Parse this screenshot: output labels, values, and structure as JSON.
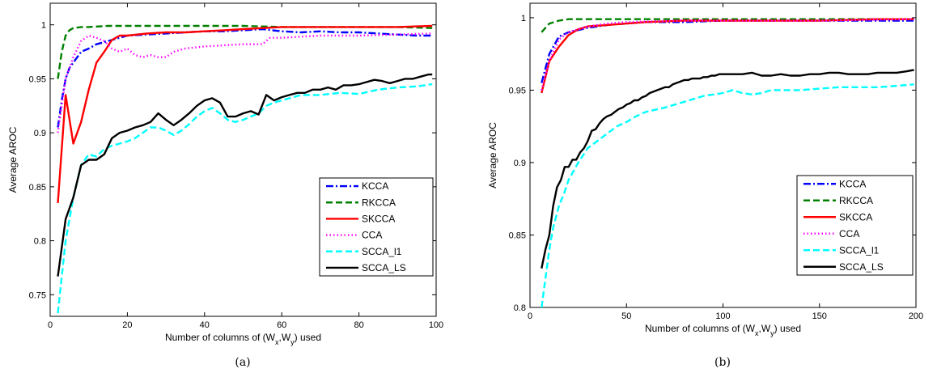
{
  "chart_data": [
    {
      "type": "line",
      "caption": "(a)",
      "xlabel": "Number of columns of (W",
      "xlabel_sub1": "x",
      "xlabel_mid": ",W",
      "xlabel_sub2": "y",
      "xlabel_end": ") used",
      "ylabel": "Average AROC",
      "xlim": [
        0,
        100
      ],
      "ylim": [
        0.73,
        1.02
      ],
      "xticks": [
        0,
        20,
        40,
        60,
        80,
        100
      ],
      "yticks": [
        0.75,
        0.8,
        0.85,
        0.9,
        0.95,
        1
      ],
      "ytick_labels": [
        "0.75",
        "0.8",
        "0.85",
        "0.9",
        "0.95",
        "1"
      ],
      "legend_position": "lower-right",
      "series": [
        {
          "name": "KCCA",
          "color": "#0000ff",
          "style": "dashdot",
          "x": [
            2,
            3,
            4,
            5,
            6,
            8,
            10,
            12,
            15,
            18,
            20,
            25,
            30,
            35,
            40,
            45,
            50,
            55,
            60,
            65,
            70,
            75,
            80,
            85,
            90,
            95,
            99
          ],
          "y": [
            0.905,
            0.93,
            0.95,
            0.96,
            0.965,
            0.975,
            0.978,
            0.982,
            0.985,
            0.988,
            0.99,
            0.991,
            0.992,
            0.993,
            0.994,
            0.994,
            0.995,
            0.996,
            0.994,
            0.993,
            0.994,
            0.993,
            0.993,
            0.992,
            0.991,
            0.99,
            0.99
          ]
        },
        {
          "name": "RKCCA",
          "color": "#008000",
          "style": "dashed",
          "x": [
            2,
            3,
            4,
            5,
            6,
            8,
            10,
            15,
            20,
            30,
            40,
            50,
            60,
            70,
            80,
            90,
            99
          ],
          "y": [
            0.95,
            0.975,
            0.99,
            0.995,
            0.997,
            0.998,
            0.998,
            0.999,
            0.999,
            0.999,
            0.999,
            0.999,
            0.998,
            0.998,
            0.998,
            0.998,
            0.997
          ]
        },
        {
          "name": "SKCCA",
          "color": "#ff0000",
          "style": "solid",
          "x": [
            2,
            4,
            6,
            8,
            10,
            12,
            14,
            16,
            18,
            20,
            25,
            30,
            35,
            40,
            45,
            50,
            55,
            60,
            70,
            80,
            90,
            99
          ],
          "y": [
            0.835,
            0.935,
            0.89,
            0.91,
            0.94,
            0.965,
            0.975,
            0.986,
            0.99,
            0.99,
            0.992,
            0.993,
            0.993,
            0.994,
            0.995,
            0.996,
            0.997,
            0.998,
            0.998,
            0.998,
            0.998,
            0.999
          ]
        },
        {
          "name": "CCA",
          "color": "#ff00ff",
          "style": "dotted",
          "x": [
            2,
            4,
            6,
            8,
            10,
            12,
            14,
            16,
            18,
            20,
            22,
            24,
            26,
            28,
            30,
            32,
            35,
            40,
            45,
            50,
            55,
            57,
            60,
            70,
            80,
            90,
            99
          ],
          "y": [
            0.9,
            0.95,
            0.97,
            0.985,
            0.99,
            0.988,
            0.985,
            0.978,
            0.975,
            0.978,
            0.972,
            0.97,
            0.972,
            0.97,
            0.97,
            0.975,
            0.978,
            0.98,
            0.981,
            0.982,
            0.982,
            0.988,
            0.988,
            0.99,
            0.99,
            0.991,
            0.992
          ]
        },
        {
          "name": "SCCA_l1",
          "color": "#00ffff",
          "style": "dashed",
          "x": [
            2,
            4,
            6,
            8,
            10,
            12,
            14,
            16,
            18,
            20,
            22,
            24,
            26,
            28,
            30,
            32,
            34,
            36,
            38,
            40,
            42,
            44,
            46,
            48,
            50,
            52,
            54,
            56,
            58,
            60,
            65,
            70,
            75,
            80,
            85,
            90,
            95,
            99
          ],
          "y": [
            0.733,
            0.8,
            0.84,
            0.87,
            0.88,
            0.878,
            0.885,
            0.888,
            0.89,
            0.892,
            0.895,
            0.9,
            0.905,
            0.905,
            0.902,
            0.898,
            0.902,
            0.908,
            0.915,
            0.92,
            0.923,
            0.918,
            0.912,
            0.91,
            0.912,
            0.915,
            0.918,
            0.925,
            0.928,
            0.93,
            0.935,
            0.935,
            0.937,
            0.936,
            0.94,
            0.942,
            0.943,
            0.945
          ]
        },
        {
          "name": "SCCA_LS",
          "color": "#000000",
          "style": "solid",
          "x": [
            2,
            4,
            6,
            8,
            10,
            12,
            14,
            16,
            18,
            20,
            22,
            24,
            26,
            28,
            30,
            32,
            34,
            36,
            38,
            40,
            42,
            44,
            46,
            48,
            50,
            52,
            54,
            56,
            58,
            60,
            62,
            64,
            66,
            68,
            70,
            72,
            74,
            76,
            78,
            80,
            82,
            84,
            86,
            88,
            90,
            92,
            94,
            96,
            98,
            99
          ],
          "y": [
            0.767,
            0.82,
            0.84,
            0.87,
            0.875,
            0.875,
            0.88,
            0.895,
            0.9,
            0.902,
            0.905,
            0.907,
            0.91,
            0.918,
            0.912,
            0.907,
            0.912,
            0.918,
            0.925,
            0.93,
            0.932,
            0.928,
            0.915,
            0.915,
            0.918,
            0.92,
            0.917,
            0.935,
            0.93,
            0.933,
            0.935,
            0.937,
            0.937,
            0.94,
            0.94,
            0.942,
            0.94,
            0.944,
            0.944,
            0.945,
            0.947,
            0.949,
            0.948,
            0.946,
            0.948,
            0.95,
            0.95,
            0.952,
            0.954,
            0.954
          ]
        }
      ]
    },
    {
      "type": "line",
      "caption": "(b)",
      "xlabel": "Number of columns of (W",
      "xlabel_sub1": "x",
      "xlabel_mid": ",W",
      "xlabel_sub2": "y",
      "xlabel_end": ") used",
      "ylabel": "Average AROC",
      "xlim": [
        0,
        200
      ],
      "ylim": [
        0.8,
        1.01
      ],
      "xticks": [
        0,
        50,
        100,
        150,
        200
      ],
      "yticks": [
        0.8,
        0.85,
        0.9,
        0.95,
        1
      ],
      "ytick_labels": [
        "0.8",
        "0.85",
        "0.9",
        "0.95",
        "1"
      ],
      "legend_position": "lower-right",
      "series": [
        {
          "name": "KCCA",
          "color": "#0000ff",
          "style": "dashdot",
          "x": [
            6,
            10,
            15,
            20,
            30,
            40,
            50,
            60,
            80,
            100,
            120,
            150,
            180,
            199
          ],
          "y": [
            0.955,
            0.975,
            0.987,
            0.99,
            0.993,
            0.995,
            0.996,
            0.997,
            0.997,
            0.998,
            0.998,
            0.998,
            0.998,
            0.998
          ]
        },
        {
          "name": "RKCCA",
          "color": "#008000",
          "style": "dashed",
          "x": [
            6,
            10,
            15,
            20,
            30,
            50,
            75,
            100,
            150,
            199
          ],
          "y": [
            0.99,
            0.996,
            0.998,
            0.999,
            0.999,
            0.999,
            0.999,
            0.999,
            0.999,
            0.999
          ]
        },
        {
          "name": "SKCCA",
          "color": "#ff0000",
          "style": "solid",
          "x": [
            6,
            10,
            15,
            20,
            25,
            30,
            40,
            50,
            60,
            80,
            100,
            120,
            150,
            180,
            199
          ],
          "y": [
            0.948,
            0.97,
            0.98,
            0.988,
            0.992,
            0.994,
            0.995,
            0.996,
            0.997,
            0.998,
            0.998,
            0.998,
            0.998,
            0.999,
            0.999
          ]
        },
        {
          "name": "CCA",
          "color": "#ff00ff",
          "style": "dotted",
          "x": [
            6,
            10,
            15,
            20,
            30,
            40,
            50,
            75,
            100,
            150,
            199
          ],
          "y": [
            0.95,
            0.97,
            0.985,
            0.99,
            0.994,
            0.996,
            0.997,
            0.998,
            0.998,
            0.998,
            0.999
          ]
        },
        {
          "name": "SCCA_l1",
          "color": "#00ffff",
          "style": "dashed",
          "x": [
            6,
            8,
            10,
            12,
            15,
            18,
            20,
            25,
            30,
            35,
            40,
            45,
            50,
            55,
            60,
            70,
            80,
            90,
            100,
            105,
            110,
            115,
            120,
            125,
            130,
            140,
            150,
            160,
            170,
            180,
            190,
            199
          ],
          "y": [
            0.8,
            0.82,
            0.84,
            0.855,
            0.87,
            0.88,
            0.888,
            0.9,
            0.91,
            0.915,
            0.92,
            0.925,
            0.928,
            0.932,
            0.935,
            0.938,
            0.942,
            0.946,
            0.948,
            0.95,
            0.948,
            0.947,
            0.948,
            0.95,
            0.95,
            0.95,
            0.951,
            0.952,
            0.952,
            0.952,
            0.953,
            0.954
          ]
        },
        {
          "name": "SCCA_LS",
          "color": "#000000",
          "style": "solid",
          "x": [
            6,
            8,
            10,
            12,
            14,
            16,
            18,
            20,
            22,
            24,
            26,
            28,
            30,
            32,
            34,
            36,
            38,
            40,
            42,
            44,
            46,
            48,
            50,
            52,
            54,
            56,
            58,
            60,
            62,
            64,
            66,
            68,
            70,
            72,
            74,
            76,
            78,
            80,
            82,
            84,
            86,
            88,
            90,
            92,
            94,
            96,
            98,
            100,
            105,
            110,
            115,
            120,
            125,
            130,
            135,
            140,
            145,
            150,
            155,
            160,
            165,
            170,
            175,
            180,
            185,
            190,
            195,
            199
          ],
          "y": [
            0.827,
            0.84,
            0.85,
            0.87,
            0.883,
            0.888,
            0.897,
            0.897,
            0.902,
            0.902,
            0.907,
            0.91,
            0.915,
            0.922,
            0.923,
            0.927,
            0.93,
            0.932,
            0.933,
            0.935,
            0.937,
            0.938,
            0.94,
            0.941,
            0.943,
            0.943,
            0.945,
            0.946,
            0.948,
            0.949,
            0.95,
            0.951,
            0.952,
            0.952,
            0.954,
            0.955,
            0.956,
            0.957,
            0.957,
            0.958,
            0.958,
            0.958,
            0.959,
            0.959,
            0.96,
            0.96,
            0.961,
            0.961,
            0.961,
            0.961,
            0.962,
            0.96,
            0.96,
            0.961,
            0.96,
            0.96,
            0.961,
            0.961,
            0.962,
            0.962,
            0.961,
            0.961,
            0.961,
            0.962,
            0.962,
            0.962,
            0.963,
            0.964
          ]
        }
      ]
    }
  ]
}
